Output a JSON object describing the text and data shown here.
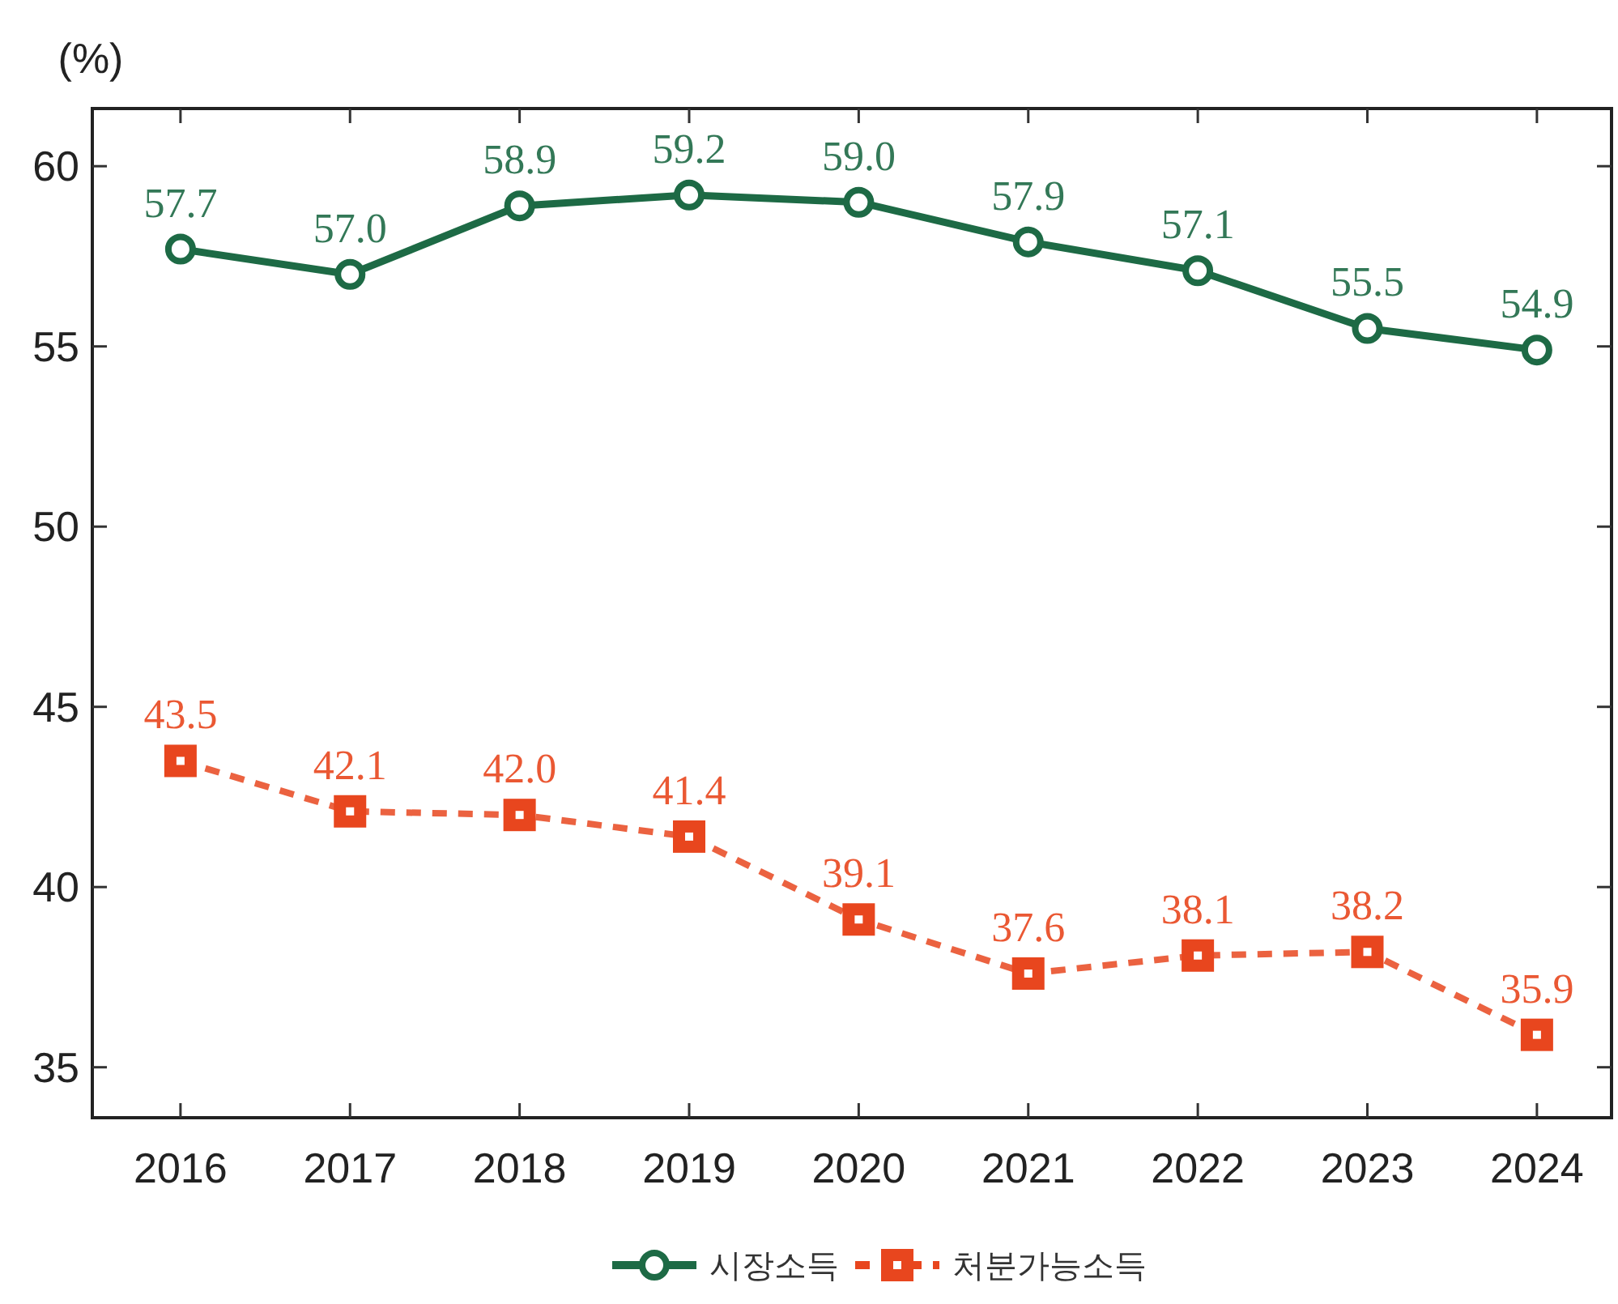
{
  "chart_data": {
    "type": "line",
    "ylabel": "(%)",
    "categories": [
      "2016",
      "2017",
      "2018",
      "2019",
      "2020",
      "2021",
      "2022",
      "2023",
      "2024"
    ],
    "series": [
      {
        "name": "시장소득",
        "color": "#1d6a45",
        "values": [
          57.7,
          57.0,
          58.9,
          59.2,
          59.0,
          57.9,
          57.1,
          55.5,
          54.9
        ],
        "value_labels": [
          "57.7",
          "57.0",
          "58.9",
          "59.2",
          "59.0",
          "57.9",
          "57.1",
          "55.5",
          "54.9"
        ],
        "marker": "circle",
        "line_style": "solid"
      },
      {
        "name": "처분가능소득",
        "color": "#e8461e",
        "values": [
          43.5,
          42.1,
          42.0,
          41.4,
          39.1,
          37.6,
          38.1,
          38.2,
          35.9
        ],
        "value_labels": [
          "43.5",
          "42.1",
          "42.0",
          "41.4",
          "39.1",
          "37.6",
          "38.1",
          "38.2",
          "35.9"
        ],
        "marker": "square",
        "line_style": "dashed"
      }
    ],
    "ylim": [
      33.6,
      61.6
    ],
    "yticks": [
      35,
      40,
      45,
      50,
      55,
      60
    ],
    "legend": "bottom",
    "grid": false
  }
}
